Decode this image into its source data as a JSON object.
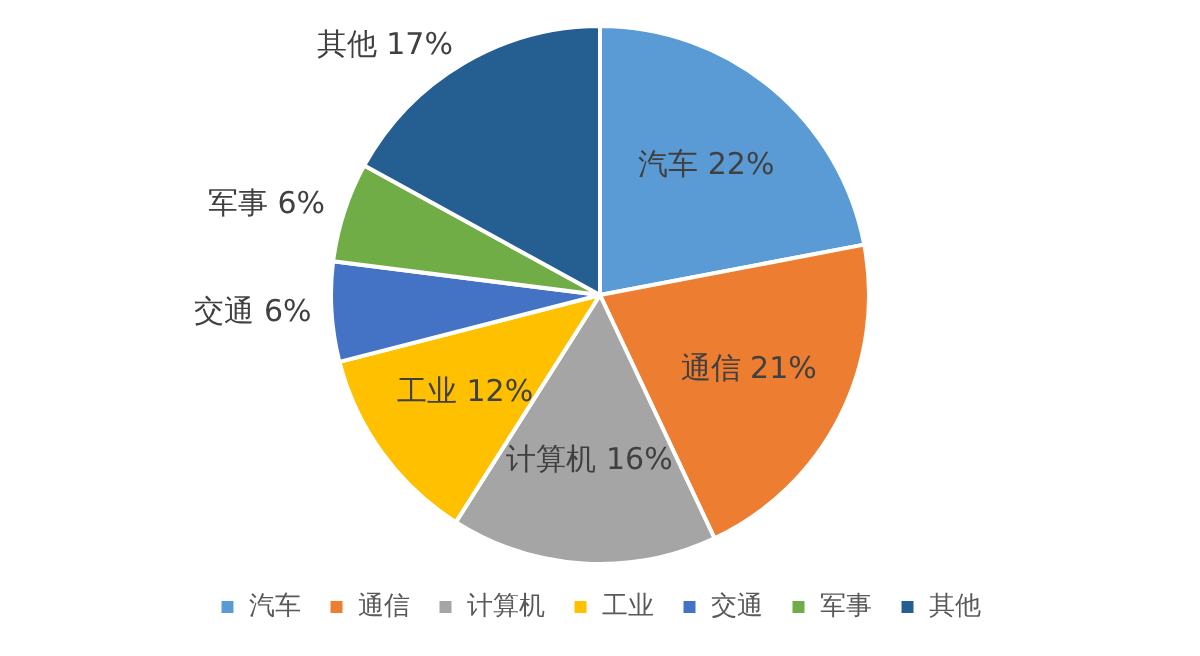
{
  "chart_data": {
    "type": "pie",
    "categories": [
      "汽车",
      "通信",
      "计算机",
      "工业",
      "交通",
      "军事",
      "其他"
    ],
    "values": [
      22,
      21,
      16,
      12,
      6,
      6,
      17
    ],
    "value_labels": [
      "22%",
      "21%",
      "16%",
      "12%",
      "6%",
      "6%",
      "17%"
    ],
    "colors": [
      "#5b9bd5",
      "#ed7d31",
      "#a5a5a5",
      "#ffc000",
      "#4472c4",
      "#70ad47",
      "#255e91"
    ],
    "legend": "bottom"
  }
}
